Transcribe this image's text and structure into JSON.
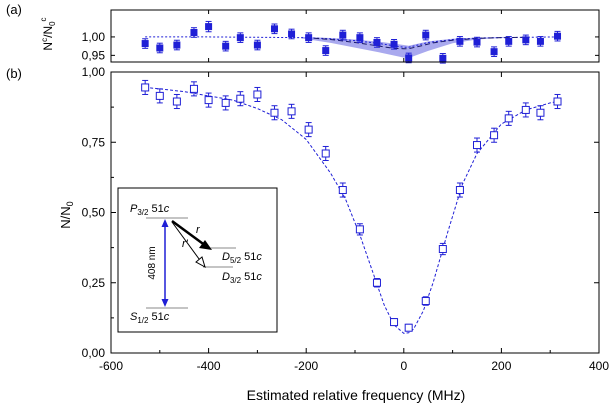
{
  "colors": {
    "series": "#1f1fd6",
    "band": "#a9a9ee",
    "axis": "#000000"
  },
  "chart_data": [
    {
      "panel_label": "(a)",
      "type": "scatter",
      "ylabel_parts": {
        "main": "N",
        "sup": "c",
        "slash": "/N",
        "sub": "0",
        "sup2": "c"
      },
      "xlim": [
        -600,
        400
      ],
      "ylim": [
        0.932,
        1.073
      ],
      "yticks": [
        0.95,
        1.0
      ],
      "ytick_labels": [
        "0,95",
        "1,00"
      ],
      "series": [
        {
          "marker": "filled-square",
          "x": [
            -530,
            -500,
            -465,
            -430,
            -400,
            -365,
            -335,
            -300,
            -265,
            -230,
            -195,
            -160,
            -125,
            -90,
            -55,
            -20,
            10,
            45,
            80,
            115,
            150,
            185,
            215,
            250,
            280,
            315
          ],
          "y": [
            0.982,
            0.97,
            0.978,
            1.012,
            1.028,
            0.975,
            0.998,
            0.978,
            1.022,
            1.008,
            0.998,
            0.963,
            1.005,
            0.998,
            0.985,
            0.98,
            0.943,
            1.005,
            0.942,
            0.988,
            0.986,
            0.96,
            0.988,
            0.992,
            0.988,
            1.002
          ],
          "err": [
            0.013,
            0.013,
            0.013,
            0.013,
            0.014,
            0.013,
            0.013,
            0.013,
            0.013,
            0.013,
            0.013,
            0.013,
            0.013,
            0.013,
            0.013,
            0.013,
            0.013,
            0.013,
            0.013,
            0.013,
            0.013,
            0.013,
            0.013,
            0.013,
            0.013,
            0.013
          ]
        }
      ],
      "fit_short_dash": {
        "x": [
          -530,
          -400,
          -300,
          -200,
          -150,
          -100,
          -50,
          0,
          10,
          50,
          100,
          150,
          200,
          250,
          315
        ],
        "y": [
          1.0,
          1.0,
          0.999,
          0.998,
          0.995,
          0.99,
          0.982,
          0.972,
          0.972,
          0.985,
          0.993,
          0.997,
          0.998,
          0.999,
          1.0
        ]
      },
      "fit_long_dash": {
        "x": [
          -200,
          -150,
          -100,
          -50,
          -20,
          0,
          10,
          30,
          60,
          100,
          150,
          200,
          250
        ],
        "y": [
          0.998,
          0.993,
          0.985,
          0.975,
          0.969,
          0.968,
          0.968,
          0.974,
          0.984,
          0.991,
          0.996,
          0.998,
          0.999
        ]
      },
      "band": {
        "x": [
          -210,
          -150,
          -100,
          -50,
          0,
          10,
          50,
          100,
          150,
          210
        ],
        "upper": [
          1.0,
          0.997,
          0.993,
          0.987,
          0.978,
          0.976,
          0.988,
          0.995,
          0.998,
          1.0
        ],
        "lower": [
          0.996,
          0.984,
          0.971,
          0.958,
          0.944,
          0.943,
          0.962,
          0.983,
          0.993,
          0.998
        ]
      }
    },
    {
      "panel_label": "(b)",
      "type": "scatter",
      "xlabel": "Estimated relative frequency (MHz)",
      "ylabel_parts": {
        "main": "N/N",
        "sub": "0"
      },
      "xlim": [
        -600,
        400
      ],
      "ylim": [
        0.0,
        1.0
      ],
      "xticks": [
        -600,
        -400,
        -200,
        0,
        200,
        400
      ],
      "xtick_labels": [
        "-600",
        "-400",
        "-200",
        "0",
        "200",
        "400"
      ],
      "yticks": [
        0.0,
        0.25,
        0.5,
        0.75,
        1.0
      ],
      "ytick_labels": [
        "0,00",
        "0,25",
        "0,50",
        "0,75",
        "1,00"
      ],
      "series": [
        {
          "marker": "open-square",
          "x": [
            -530,
            -500,
            -465,
            -430,
            -400,
            -365,
            -335,
            -300,
            -265,
            -230,
            -195,
            -160,
            -125,
            -90,
            -55,
            -20,
            10,
            45,
            80,
            115,
            150,
            185,
            215,
            250,
            280,
            315
          ],
          "y": [
            0.945,
            0.915,
            0.895,
            0.94,
            0.9,
            0.89,
            0.905,
            0.92,
            0.855,
            0.86,
            0.795,
            0.71,
            0.58,
            0.44,
            0.25,
            0.11,
            0.09,
            0.185,
            0.37,
            0.58,
            0.74,
            0.775,
            0.835,
            0.865,
            0.855,
            0.895
          ],
          "err": [
            0.025,
            0.025,
            0.025,
            0.025,
            0.025,
            0.025,
            0.025,
            0.025,
            0.025,
            0.025,
            0.025,
            0.025,
            0.025,
            0.02,
            0.015,
            0.012,
            0.012,
            0.015,
            0.02,
            0.025,
            0.025,
            0.025,
            0.025,
            0.025,
            0.025,
            0.025
          ]
        }
      ],
      "fit": {
        "x": [
          -530,
          -500,
          -450,
          -400,
          -350,
          -300,
          -250,
          -200,
          -150,
          -120,
          -90,
          -60,
          -40,
          -20,
          0,
          10,
          20,
          40,
          60,
          90,
          120,
          150,
          200,
          250,
          300,
          315
        ],
        "y": [
          0.945,
          0.94,
          0.93,
          0.915,
          0.9,
          0.87,
          0.83,
          0.76,
          0.64,
          0.55,
          0.42,
          0.27,
          0.17,
          0.1,
          0.07,
          0.072,
          0.085,
          0.15,
          0.25,
          0.43,
          0.6,
          0.71,
          0.815,
          0.865,
          0.89,
          0.895
        ]
      },
      "inset": {
        "levels": [
          {
            "name": "P3/2",
            "prefix": "P",
            "sub": "3/2",
            "suffix": " 51",
            "ital": "c"
          },
          {
            "name": "D5/2",
            "prefix": "D",
            "sub": "5/2",
            "suffix": " 51",
            "ital": "c"
          },
          {
            "name": "D3/2",
            "prefix": "D",
            "sub": "3/2",
            "suffix": " 51",
            "ital": "c"
          },
          {
            "name": "S1/2",
            "prefix": "S",
            "sub": "1/2",
            "suffix": " 51",
            "ital": "c"
          }
        ],
        "transition_label": "408 nm",
        "r_label": "r",
        "r_prime_label": "r'"
      }
    }
  ]
}
